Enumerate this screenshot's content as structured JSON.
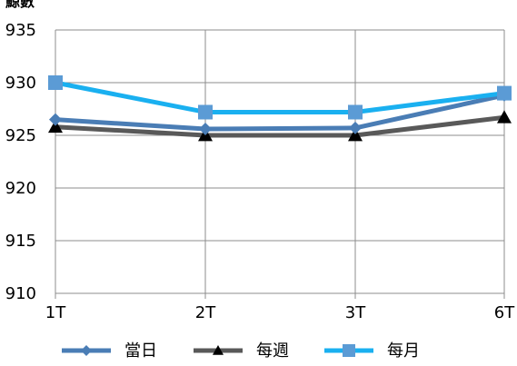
{
  "chart_data": {
    "type": "line",
    "ylabel": "鯨數",
    "xlabel": "",
    "title": "",
    "categories": [
      "1T",
      "2T",
      "3T",
      "6T"
    ],
    "ylim": [
      910,
      935
    ],
    "yticks": [
      "935",
      "930",
      "925",
      "920",
      "915",
      "910"
    ],
    "grid": true,
    "legend_position": "bottom",
    "series": [
      {
        "name": "當日",
        "values": [
          926.5,
          925.6,
          925.7,
          928.8
        ],
        "color": "#4a7db5",
        "marker": "diamond"
      },
      {
        "name": "每週",
        "values": [
          925.8,
          925.0,
          925.0,
          926.7
        ],
        "color": "#595959",
        "marker": "triangle"
      },
      {
        "name": "每月",
        "values": [
          930.0,
          927.2,
          927.2,
          929.0
        ],
        "color": "#1ab0f0",
        "marker": "square",
        "marker_color": "#5b9bd5"
      }
    ]
  }
}
